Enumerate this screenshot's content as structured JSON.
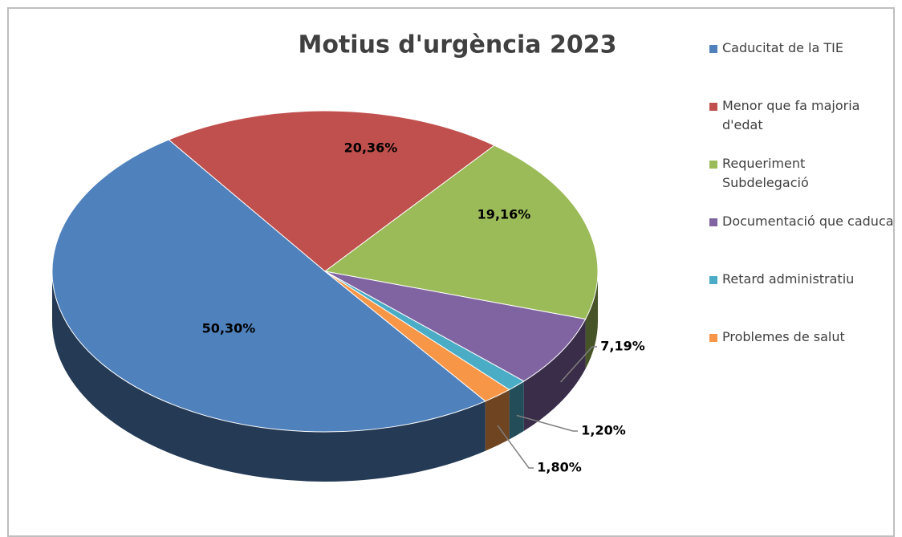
{
  "chart_data": {
    "type": "pie",
    "title": "Motius d'urgència 2023",
    "categories": [
      "Caducitat de la TIE",
      "Menor que fa majoria d'edat",
      "Requeriment Subdelegació",
      "Documentació que caduca",
      "Retard administratiu",
      "Problemes de salut"
    ],
    "values": [
      50.3,
      20.36,
      19.16,
      7.19,
      1.2,
      1.8
    ],
    "value_labels": [
      "50,30%",
      "20,36%",
      "19,16%",
      "7,19%",
      "1,20%",
      "1,80%"
    ],
    "colors": [
      "#4f81bd",
      "#c0504d",
      "#9bbb59",
      "#8064a2",
      "#4bacc6",
      "#f79646"
    ],
    "legend": "right"
  }
}
